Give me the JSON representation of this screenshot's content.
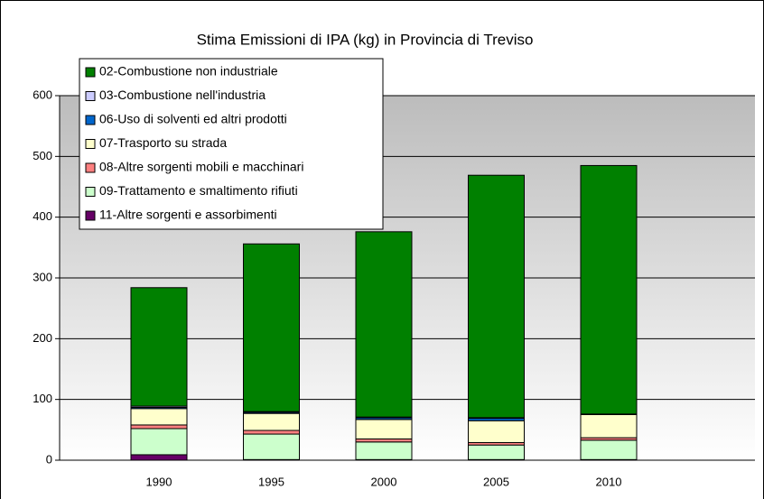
{
  "chart_data": {
    "type": "stacked_bar",
    "title": "Stima Emissioni di IPA (kg) in Provincia di Treviso",
    "categories": [
      "1990",
      "1995",
      "2000",
      "2005",
      "2010"
    ],
    "series": [
      {
        "name": "02-Combustione non industriale",
        "color": "#008000",
        "values": [
          195,
          276,
          305,
          399,
          409
        ]
      },
      {
        "name": "03-Combustione nell'industria",
        "color": "#ccccff",
        "values": [
          2,
          1,
          1,
          1,
          1
        ]
      },
      {
        "name": "06-Uso di solventi ed altri prodotti",
        "color": "#0066cc",
        "values": [
          2,
          2,
          3,
          4,
          0
        ]
      },
      {
        "name": "07-Trasporto su strada",
        "color": "#ffffcc",
        "values": [
          27,
          28,
          32,
          36,
          38
        ]
      },
      {
        "name": "08-Altre sorgenti mobili e macchinari",
        "color": "#ff8080",
        "values": [
          6,
          6,
          5,
          4,
          4
        ]
      },
      {
        "name": "09-Trattamento e smaltimento rifiuti",
        "color": "#ccffcc",
        "values": [
          43,
          42,
          29,
          24,
          32
        ]
      },
      {
        "name": "11-Altre sorgenti e assorbimenti",
        "color": "#660066",
        "values": [
          9,
          1,
          1,
          1,
          1
        ]
      }
    ],
    "ylim": [
      0,
      600
    ],
    "yticks": [
      0,
      100,
      200,
      300,
      400,
      500,
      600
    ],
    "grid": true,
    "legend": "upper left"
  }
}
